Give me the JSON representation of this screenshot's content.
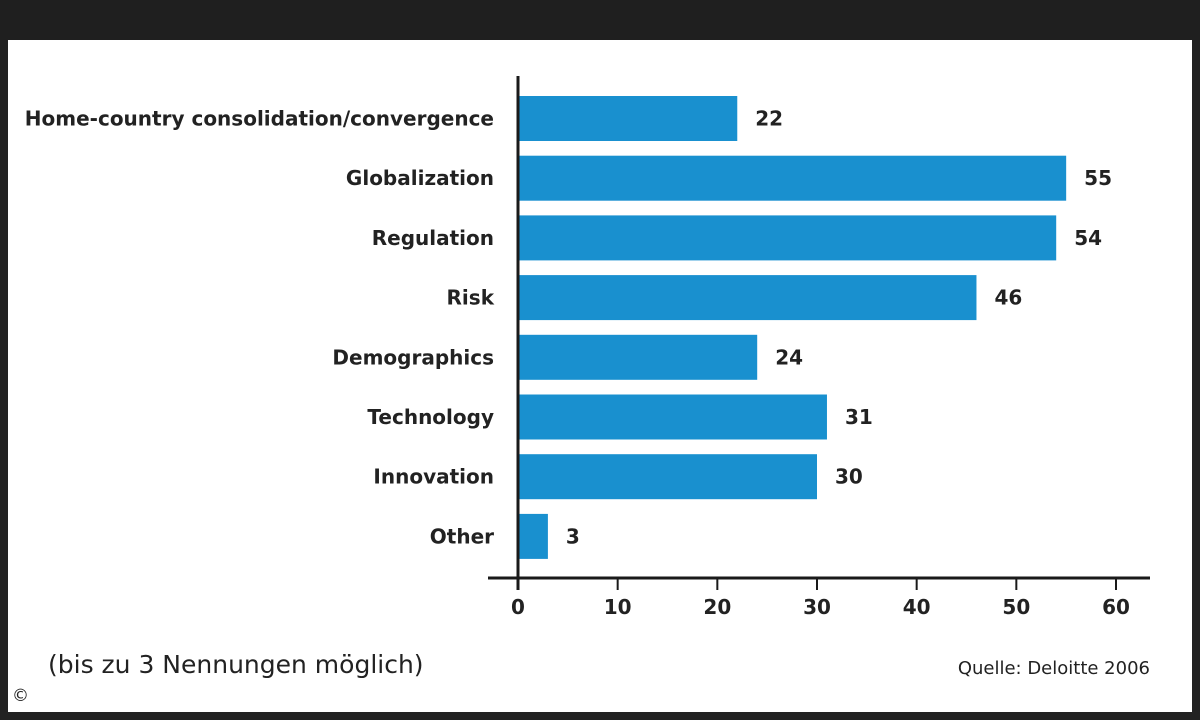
{
  "title": "",
  "note": "(bis zu 3 Nennungen möglich)",
  "source": "Quelle: Deloitte 2006",
  "copyright_symbol": "©",
  "colors": {
    "bar": "#1990cf",
    "frame": "#222222",
    "text": "#222222"
  },
  "chart_data": {
    "type": "bar",
    "orientation": "horizontal",
    "categories": [
      "Home-country consolidation/convergence",
      "Globalization",
      "Regulation",
      "Risk",
      "Demographics",
      "Technology",
      "Innovation",
      "Other"
    ],
    "values": [
      22,
      55,
      54,
      46,
      24,
      31,
      30,
      3
    ],
    "xlim": [
      0,
      60
    ],
    "xticks": [
      0,
      10,
      20,
      30,
      40,
      50,
      60
    ],
    "grid": false,
    "data_labels": true
  }
}
